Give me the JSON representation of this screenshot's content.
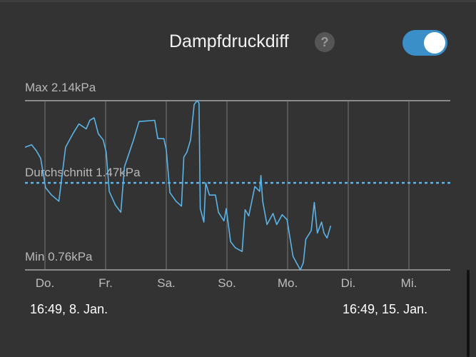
{
  "header": {
    "title": "Dampfdruckdiff",
    "help_icon": "question-icon",
    "toggle_on": true,
    "toggle_color": "#3a8fc9"
  },
  "chart_data": {
    "type": "line",
    "title": "Dampfdruckdiff",
    "max_label": "Max 2.14kPa",
    "avg_label": "Durchschnitt 1.47kPa",
    "min_label": "Min 0.76kPa",
    "ylim": [
      0.76,
      2.14
    ],
    "average": 1.47,
    "xlim": [
      -0.33,
      6.7
    ],
    "day_labels": [
      "Do.",
      "Fr.",
      "Sa.",
      "So.",
      "Mo.",
      "Di.",
      "Mi."
    ],
    "line_color": "#5ab4e8",
    "series": [
      {
        "name": "Dampfdruckdiff (kPa)",
        "points": [
          [
            -0.33,
            1.76
          ],
          [
            -0.22,
            1.78
          ],
          [
            -0.14,
            1.73
          ],
          [
            -0.07,
            1.67
          ],
          [
            0.01,
            1.43
          ],
          [
            0.11,
            1.37
          ],
          [
            0.23,
            1.32
          ],
          [
            0.34,
            1.76
          ],
          [
            0.46,
            1.87
          ],
          [
            0.56,
            1.95
          ],
          [
            0.68,
            1.91
          ],
          [
            0.74,
            1.98
          ],
          [
            0.81,
            2.0
          ],
          [
            0.88,
            1.87
          ],
          [
            0.96,
            1.82
          ],
          [
            1.01,
            1.72
          ],
          [
            1.06,
            1.4
          ],
          [
            1.16,
            1.29
          ],
          [
            1.25,
            1.23
          ],
          [
            1.31,
            1.6
          ],
          [
            1.46,
            1.82
          ],
          [
            1.55,
            1.97
          ],
          [
            1.81,
            1.98
          ],
          [
            1.86,
            1.83
          ],
          [
            1.96,
            1.83
          ],
          [
            2.0,
            1.74
          ],
          [
            2.06,
            1.39
          ],
          [
            2.16,
            1.32
          ],
          [
            2.25,
            1.28
          ],
          [
            2.29,
            1.68
          ],
          [
            2.34,
            1.72
          ],
          [
            2.4,
            1.82
          ],
          [
            2.46,
            2.11
          ],
          [
            2.51,
            2.14
          ],
          [
            2.54,
            2.12
          ],
          [
            2.56,
            1.26
          ],
          [
            2.62,
            1.15
          ],
          [
            2.65,
            1.47
          ],
          [
            2.71,
            1.37
          ],
          [
            2.81,
            1.37
          ],
          [
            2.86,
            1.23
          ],
          [
            2.95,
            1.16
          ],
          [
            2.99,
            1.26
          ],
          [
            3.06,
            0.99
          ],
          [
            3.14,
            0.94
          ],
          [
            3.25,
            0.91
          ],
          [
            3.3,
            1.25
          ],
          [
            3.36,
            1.2
          ],
          [
            3.46,
            1.44
          ],
          [
            3.54,
            1.4
          ],
          [
            3.56,
            1.53
          ],
          [
            3.59,
            1.32
          ],
          [
            3.66,
            1.13
          ],
          [
            3.76,
            1.22
          ],
          [
            3.82,
            1.13
          ],
          [
            3.91,
            1.21
          ],
          [
            3.99,
            1.17
          ],
          [
            4.09,
            0.87
          ],
          [
            4.21,
            0.76
          ],
          [
            4.26,
            0.82
          ],
          [
            4.3,
            1.01
          ],
          [
            4.39,
            1.08
          ],
          [
            4.44,
            1.31
          ],
          [
            4.49,
            1.06
          ],
          [
            4.56,
            1.15
          ],
          [
            4.6,
            1.06
          ],
          [
            4.65,
            1.02
          ],
          [
            4.71,
            1.12
          ]
        ]
      }
    ]
  },
  "range": {
    "start": "16:49,  8. Jan.",
    "end": "16:49,  15. Jan."
  }
}
